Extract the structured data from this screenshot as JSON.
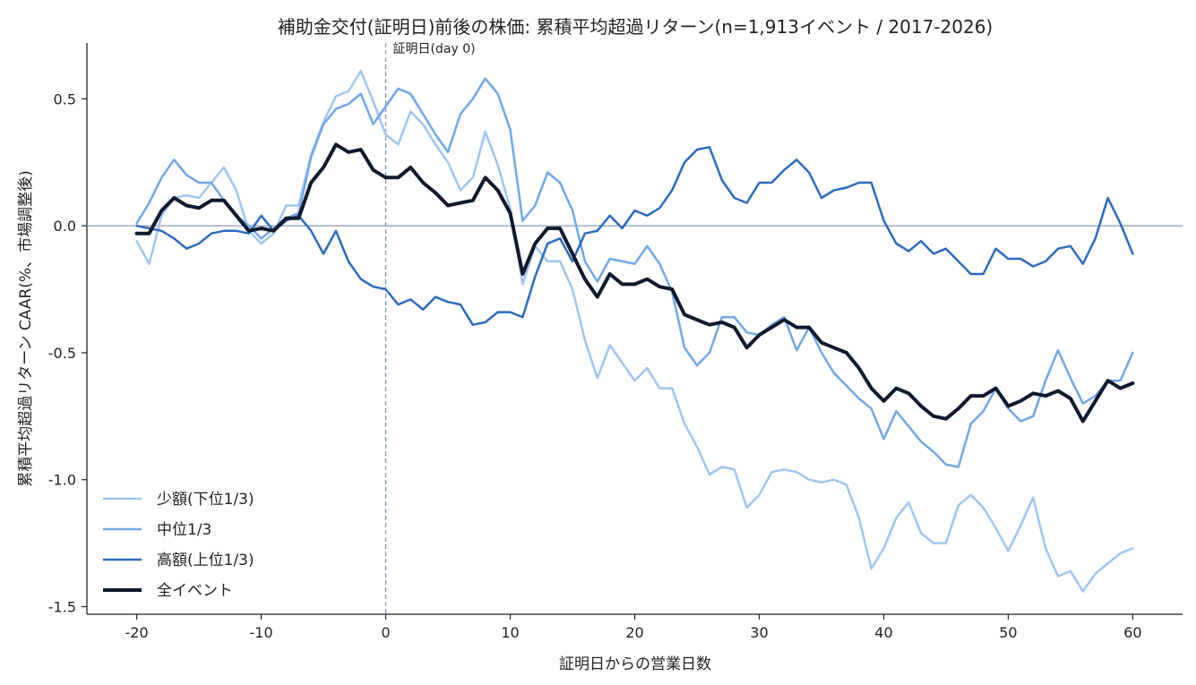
{
  "chart_data": {
    "type": "line",
    "title": "補助金交付(証明日)前後の株価: 累積平均超過リターン(n=1,913イベント / 2017-2026)",
    "xlabel": "証明日からの営業日数",
    "ylabel": "累積平均超過リターン CAAR(%、市場調整後)",
    "xlim": [
      -24,
      64
    ],
    "ylim": [
      -1.53,
      0.72
    ],
    "xticks": [
      -20,
      -10,
      0,
      10,
      20,
      30,
      40,
      50,
      60
    ],
    "xtick_labels": [
      "-20",
      "-10",
      "0",
      "10",
      "20",
      "30",
      "40",
      "50",
      "60"
    ],
    "yticks": [
      0.5,
      0.0,
      -0.5,
      -1.0,
      -1.5
    ],
    "ytick_labels": [
      "0.5",
      "0.0",
      "-0.5",
      "-1.0",
      "-1.5"
    ],
    "vline": {
      "x": 0,
      "label": "証明日(day 0)",
      "color": "#7f93ad"
    },
    "hline": {
      "y": 0,
      "color": "#8a9aab"
    },
    "legend_position": "lower-left",
    "grid": false,
    "x": [
      -20,
      -19,
      -18,
      -17,
      -16,
      -15,
      -14,
      -13,
      -12,
      -11,
      -10,
      -9,
      -8,
      -7,
      -6,
      -5,
      -4,
      -3,
      -2,
      -1,
      0,
      1,
      2,
      3,
      4,
      5,
      6,
      7,
      8,
      9,
      10,
      11,
      12,
      13,
      14,
      15,
      16,
      17,
      18,
      19,
      20,
      21,
      22,
      23,
      24,
      25,
      26,
      27,
      28,
      29,
      30,
      31,
      32,
      33,
      34,
      35,
      36,
      37,
      38,
      39,
      40,
      41,
      42,
      43,
      44,
      45,
      46,
      47,
      48,
      49,
      50,
      51,
      52,
      53,
      54,
      55,
      56,
      57,
      58,
      59,
      60
    ],
    "series": [
      {
        "name": "少額(下位1/3)",
        "color": "#9fc5f0",
        "width": 2.5,
        "values": [
          -0.06,
          -0.15,
          0.04,
          0.11,
          0.12,
          0.11,
          0.17,
          0.23,
          0.14,
          -0.02,
          -0.07,
          -0.03,
          0.08,
          0.08,
          0.28,
          0.41,
          0.51,
          0.53,
          0.61,
          0.49,
          0.36,
          0.32,
          0.45,
          0.4,
          0.32,
          0.25,
          0.14,
          0.19,
          0.37,
          0.24,
          0.07,
          -0.23,
          -0.08,
          -0.14,
          -0.14,
          -0.25,
          -0.45,
          -0.6,
          -0.47,
          -0.54,
          -0.61,
          -0.56,
          -0.64,
          -0.64,
          -0.78,
          -0.87,
          -0.98,
          -0.95,
          -0.96,
          -1.11,
          -1.06,
          -0.97,
          -0.96,
          -0.97,
          -1.0,
          -1.01,
          -1.0,
          -1.02,
          -1.15,
          -1.35,
          -1.27,
          -1.15,
          -1.09,
          -1.21,
          -1.25,
          -1.25,
          -1.1,
          -1.06,
          -1.11,
          -1.19,
          -1.28,
          -1.18,
          -1.07,
          -1.27,
          -1.38,
          -1.36,
          -1.44,
          -1.37,
          -1.33,
          -1.29,
          -1.27
        ]
      },
      {
        "name": "中位1/3",
        "color": "#6fa8e6",
        "width": 2.5,
        "values": [
          0.01,
          0.09,
          0.19,
          0.26,
          0.2,
          0.17,
          0.17,
          0.1,
          0.04,
          0.0,
          -0.05,
          -0.01,
          0.03,
          0.05,
          0.27,
          0.4,
          0.46,
          0.48,
          0.52,
          0.4,
          0.47,
          0.54,
          0.52,
          0.44,
          0.36,
          0.29,
          0.44,
          0.5,
          0.58,
          0.52,
          0.38,
          0.02,
          0.08,
          0.21,
          0.17,
          0.06,
          -0.14,
          -0.22,
          -0.13,
          -0.14,
          -0.15,
          -0.08,
          -0.15,
          -0.26,
          -0.48,
          -0.55,
          -0.5,
          -0.36,
          -0.36,
          -0.42,
          -0.43,
          -0.39,
          -0.36,
          -0.49,
          -0.4,
          -0.5,
          -0.58,
          -0.63,
          -0.68,
          -0.72,
          -0.84,
          -0.73,
          -0.79,
          -0.85,
          -0.89,
          -0.94,
          -0.95,
          -0.78,
          -0.73,
          -0.64,
          -0.72,
          -0.77,
          -0.75,
          -0.61,
          -0.49,
          -0.6,
          -0.7,
          -0.67,
          -0.61,
          -0.61,
          -0.5
        ]
      },
      {
        "name": "高額(上位1/3)",
        "color": "#2b6bbf",
        "width": 2.5,
        "values": [
          0.0,
          -0.01,
          -0.02,
          -0.05,
          -0.09,
          -0.07,
          -0.03,
          -0.02,
          -0.02,
          -0.03,
          0.04,
          -0.02,
          0.02,
          0.04,
          -0.02,
          -0.11,
          -0.02,
          -0.14,
          -0.21,
          -0.24,
          -0.25,
          -0.31,
          -0.29,
          -0.33,
          -0.28,
          -0.3,
          -0.31,
          -0.39,
          -0.38,
          -0.34,
          -0.34,
          -0.36,
          -0.2,
          -0.07,
          -0.05,
          -0.14,
          -0.03,
          -0.02,
          0.04,
          -0.01,
          0.06,
          0.04,
          0.07,
          0.14,
          0.25,
          0.3,
          0.31,
          0.18,
          0.11,
          0.09,
          0.17,
          0.17,
          0.22,
          0.26,
          0.21,
          0.11,
          0.14,
          0.15,
          0.17,
          0.17,
          0.02,
          -0.07,
          -0.1,
          -0.06,
          -0.11,
          -0.09,
          -0.14,
          -0.19,
          -0.19,
          -0.09,
          -0.13,
          -0.13,
          -0.16,
          -0.14,
          -0.09,
          -0.08,
          -0.15,
          -0.05,
          0.11,
          0.01,
          -0.11
        ]
      },
      {
        "name": "全イベント",
        "color": "#111a2e",
        "width": 4,
        "values": [
          -0.03,
          -0.03,
          0.06,
          0.11,
          0.08,
          0.07,
          0.1,
          0.1,
          0.04,
          -0.02,
          -0.01,
          -0.02,
          0.03,
          0.03,
          0.17,
          0.23,
          0.32,
          0.29,
          0.3,
          0.22,
          0.19,
          0.19,
          0.23,
          0.17,
          0.13,
          0.08,
          0.09,
          0.1,
          0.19,
          0.14,
          0.05,
          -0.19,
          -0.07,
          -0.01,
          -0.01,
          -0.11,
          -0.21,
          -0.28,
          -0.19,
          -0.23,
          -0.23,
          -0.21,
          -0.24,
          -0.25,
          -0.35,
          -0.37,
          -0.39,
          -0.38,
          -0.4,
          -0.48,
          -0.43,
          -0.4,
          -0.37,
          -0.4,
          -0.4,
          -0.46,
          -0.48,
          -0.5,
          -0.56,
          -0.64,
          -0.69,
          -0.64,
          -0.66,
          -0.71,
          -0.75,
          -0.76,
          -0.72,
          -0.67,
          -0.67,
          -0.64,
          -0.71,
          -0.69,
          -0.66,
          -0.67,
          -0.65,
          -0.68,
          -0.77,
          -0.69,
          -0.61,
          -0.64,
          -0.62
        ]
      }
    ]
  }
}
